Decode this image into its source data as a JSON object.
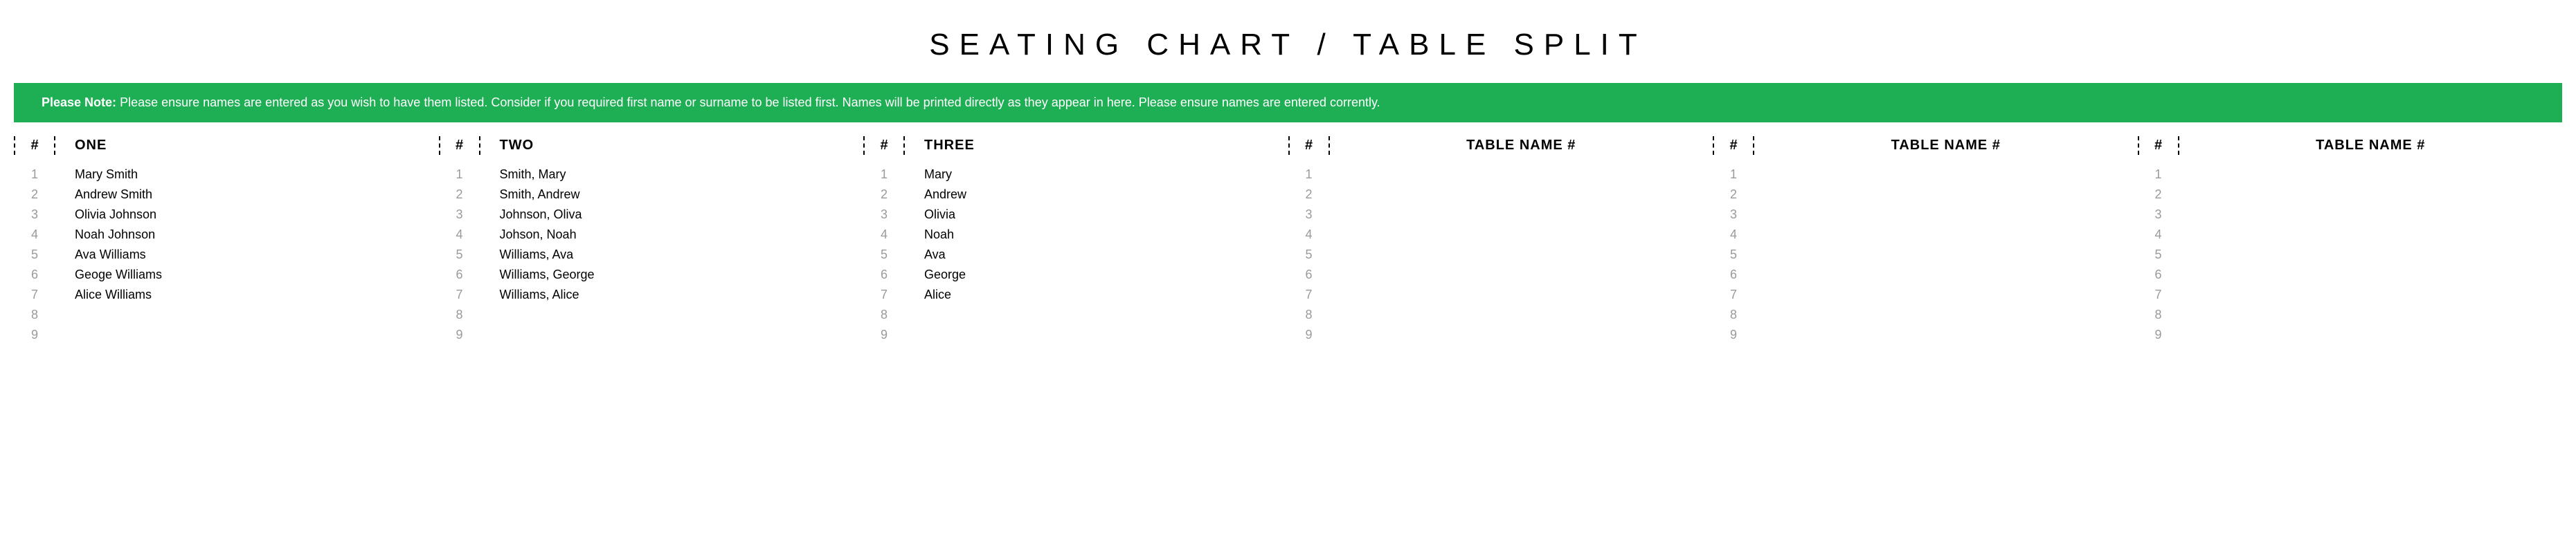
{
  "title": "SEATING CHART / TABLE SPLIT",
  "notice": {
    "lead": "Please Note:",
    "body": "Please ensure names are entered as you wish to have them listed. Consider if you required first name or surname to be listed first. Names will be printed directly as they appear in here. Please ensure names are entered corrently."
  },
  "hash_label": "#",
  "placeholder_header": "TABLE NAME #",
  "row_numbers": [
    "1",
    "2",
    "3",
    "4",
    "5",
    "6",
    "7",
    "8",
    "9"
  ],
  "tables": [
    {
      "header": "ONE",
      "is_placeholder": false,
      "names": [
        "Mary Smith",
        "Andrew Smith",
        "Olivia Johnson",
        "Noah Johnson",
        "Ava Williams",
        "Geoge Williams",
        "Alice Williams",
        "",
        ""
      ]
    },
    {
      "header": "TWO",
      "is_placeholder": false,
      "names": [
        "Smith, Mary",
        "Smith, Andrew",
        "Johnson, Oliva",
        "Johson, Noah",
        "Williams, Ava",
        "Williams, George",
        "Williams, Alice",
        "",
        ""
      ]
    },
    {
      "header": "THREE",
      "is_placeholder": false,
      "names": [
        "Mary",
        "Andrew",
        "Olivia",
        "Noah",
        "Ava",
        "George",
        "Alice",
        "",
        ""
      ]
    },
    {
      "header": "TABLE NAME #",
      "is_placeholder": true,
      "names": [
        "",
        "",
        "",
        "",
        "",
        "",
        "",
        "",
        ""
      ]
    },
    {
      "header": "TABLE NAME #",
      "is_placeholder": true,
      "names": [
        "",
        "",
        "",
        "",
        "",
        "",
        "",
        "",
        ""
      ]
    },
    {
      "header": "TABLE NAME #",
      "is_placeholder": true,
      "names": [
        "",
        "",
        "",
        "",
        "",
        "",
        "",
        "",
        ""
      ]
    }
  ],
  "colors": {
    "notice_bg": "#1eae54",
    "notice_text": "#ffffff",
    "row_number": "#9a9a9a",
    "text": "#000000",
    "background": "#ffffff"
  }
}
